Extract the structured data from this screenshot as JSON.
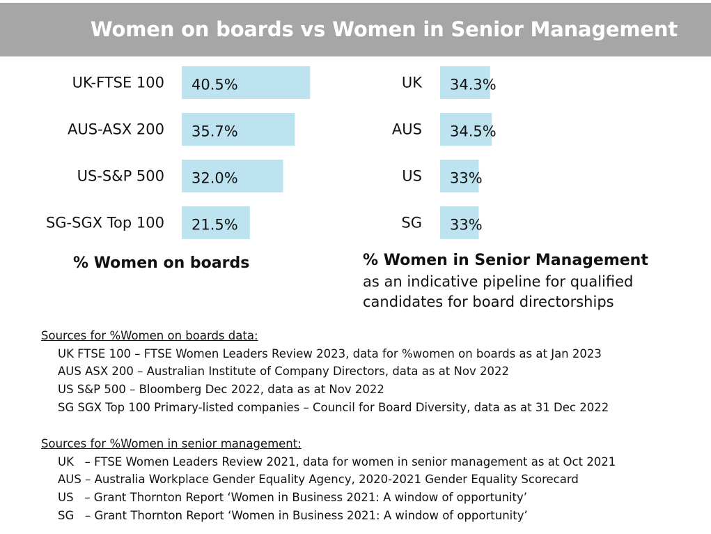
{
  "header": {
    "title": "Women on boards vs Women in Senior Management",
    "background_color": "#a6a6a6"
  },
  "chart_data": [
    {
      "type": "bar",
      "orientation": "horizontal",
      "title": "% Women on boards",
      "categories": [
        "UK-FTSE 100",
        "AUS-ASX 200",
        "US-S&P 500",
        "SG-SGX Top 100"
      ],
      "values": [
        40.5,
        35.7,
        32.0,
        21.5
      ],
      "value_labels": [
        "40.5%",
        "35.7%",
        "32.0%",
        "21.5%"
      ],
      "bar_color": "#bde3f0"
    },
    {
      "type": "bar",
      "orientation": "horizontal",
      "title": "% Women in Senior Management",
      "categories": [
        "UK",
        "AUS",
        "US",
        "SG"
      ],
      "values": [
        34.3,
        34.5,
        33,
        33
      ],
      "value_labels": [
        "34.3%",
        "34.5%",
        "33%",
        "33%"
      ],
      "bar_color": "#bde3f0"
    }
  ],
  "notes": {
    "pipeline_line1": "as an indicative pipeline for qualified",
    "pipeline_line2": "candidates for board directorships"
  },
  "sources": {
    "boards_heading": "Sources for %Women on boards data:",
    "boards_lines": [
      "UK FTSE 100 – FTSE Women Leaders Review 2023, data for %women on boards as at Jan 2023",
      "AUS ASX 200 – Australian Institute of Company Directors, data as at Nov 2022",
      "US S&P 500 – Bloomberg Dec 2022, data as at Nov 2022",
      "SG SGX Top 100 Primary-listed companies – Council for Board Diversity, data as at 31 Dec 2022"
    ],
    "mgmt_heading": "Sources for %Women in senior management:",
    "mgmt_lines": [
      "UK   – FTSE Women Leaders Review 2021, data for women in senior management as at Oct 2021",
      "AUS – Australia Workplace Gender Equality Agency, 2020-2021 Gender Equality Scorecard",
      "US   – Grant Thornton Report ‘Women in Business 2021: A window of opportunity’",
      "SG   – Grant Thornton Report ‘Women in Business 2021: A window of opportunity’"
    ]
  }
}
